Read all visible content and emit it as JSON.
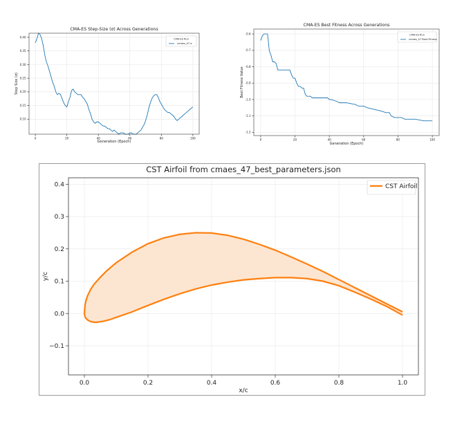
{
  "chart_data": [
    {
      "type": "line",
      "title": "CMA-ES Step-Size (σ) Across Generations",
      "xlabel": "Generation (Epoch)",
      "ylabel": "Step Size (σ)",
      "xlim": [
        -4,
        104
      ],
      "ylim": [
        0.045,
        0.415
      ],
      "xticks": [
        0,
        20,
        40,
        60,
        80,
        100
      ],
      "yticks": [
        0.1,
        0.15,
        0.2,
        0.25,
        0.3,
        0.35,
        0.4
      ],
      "ytick_labels": [
        "0.10",
        "0.15",
        "0.20",
        "0.25",
        "0.30",
        "0.35",
        "0.40"
      ],
      "grid": true,
      "legend_title": "CMA-ES Run",
      "legend_position": "top-right",
      "series": [
        {
          "name": "cmaes_47 σ",
          "color": "#1f77b4",
          "points": [
            [
              0,
              0.38
            ],
            [
              1,
              0.395
            ],
            [
              2,
              0.415
            ],
            [
              3,
              0.41
            ],
            [
              4,
              0.395
            ],
            [
              5,
              0.37
            ],
            [
              6,
              0.335
            ],
            [
              7,
              0.31
            ],
            [
              8,
              0.295
            ],
            [
              9,
              0.275
            ],
            [
              10,
              0.255
            ],
            [
              11,
              0.235
            ],
            [
              12,
              0.22
            ],
            [
              13,
              0.2
            ],
            [
              14,
              0.19
            ],
            [
              15,
              0.195
            ],
            [
              16,
              0.19
            ],
            [
              17,
              0.175
            ],
            [
              18,
              0.16
            ],
            [
              19,
              0.15
            ],
            [
              20,
              0.145
            ],
            [
              21,
              0.165
            ],
            [
              22,
              0.18
            ],
            [
              23,
              0.205
            ],
            [
              24,
              0.21
            ],
            [
              25,
              0.2
            ],
            [
              26,
              0.195
            ],
            [
              27,
              0.19
            ],
            [
              28,
              0.19
            ],
            [
              29,
              0.19
            ],
            [
              30,
              0.18
            ],
            [
              31,
              0.175
            ],
            [
              32,
              0.165
            ],
            [
              33,
              0.155
            ],
            [
              34,
              0.135
            ],
            [
              35,
              0.12
            ],
            [
              36,
              0.1
            ],
            [
              37,
              0.09
            ],
            [
              38,
              0.085
            ],
            [
              39,
              0.09
            ],
            [
              40,
              0.09
            ],
            [
              41,
              0.085
            ],
            [
              42,
              0.08
            ],
            [
              43,
              0.075
            ],
            [
              44,
              0.075
            ],
            [
              45,
              0.07
            ],
            [
              46,
              0.065
            ],
            [
              47,
              0.065
            ],
            [
              48,
              0.06
            ],
            [
              49,
              0.055
            ],
            [
              50,
              0.06
            ],
            [
              51,
              0.055
            ],
            [
              52,
              0.05
            ],
            [
              53,
              0.045
            ],
            [
              54,
              0.05
            ],
            [
              55,
              0.05
            ],
            [
              56,
              0.05
            ],
            [
              57,
              0.045
            ],
            [
              58,
              0.045
            ],
            [
              59,
              0.045
            ],
            [
              60,
              0.05
            ],
            [
              61,
              0.05
            ],
            [
              62,
              0.045
            ],
            [
              63,
              0.045
            ],
            [
              64,
              0.045
            ],
            [
              65,
              0.05
            ],
            [
              66,
              0.055
            ],
            [
              67,
              0.06
            ],
            [
              68,
              0.07
            ],
            [
              69,
              0.08
            ],
            [
              70,
              0.095
            ],
            [
              71,
              0.115
            ],
            [
              72,
              0.14
            ],
            [
              73,
              0.16
            ],
            [
              74,
              0.175
            ],
            [
              75,
              0.185
            ],
            [
              76,
              0.19
            ],
            [
              77,
              0.19
            ],
            [
              78,
              0.18
            ],
            [
              79,
              0.165
            ],
            [
              80,
              0.155
            ],
            [
              81,
              0.145
            ],
            [
              82,
              0.135
            ],
            [
              83,
              0.13
            ],
            [
              84,
              0.125
            ],
            [
              85,
              0.125
            ],
            [
              86,
              0.12
            ],
            [
              87,
              0.115
            ],
            [
              88,
              0.11
            ],
            [
              89,
              0.1
            ],
            [
              90,
              0.095
            ],
            [
              91,
              0.1
            ],
            [
              92,
              0.105
            ],
            [
              93,
              0.11
            ],
            [
              94,
              0.115
            ],
            [
              95,
              0.12
            ],
            [
              96,
              0.125
            ],
            [
              97,
              0.13
            ],
            [
              98,
              0.135
            ],
            [
              99,
              0.14
            ],
            [
              100,
              0.145
            ]
          ]
        }
      ]
    },
    {
      "type": "line",
      "title": "CMA-ES Best Fitness Across Generations",
      "xlabel": "Generation (Epoch)",
      "ylabel": "Best Fitness Value",
      "xlim": [
        -4,
        104
      ],
      "ylim": [
        -1.22,
        -0.57
      ],
      "xticks": [
        0,
        20,
        40,
        60,
        80,
        100
      ],
      "yticks": [
        -0.6,
        -0.7,
        -0.8,
        -0.9,
        -1.0,
        -1.1,
        -1.2
      ],
      "ytick_labels": [
        "-0.6",
        "-0.7",
        "-0.8",
        "-0.9",
        "-1.0",
        "-1.1",
        "-1.2"
      ],
      "grid": true,
      "legend_title": "CMA-ES Run",
      "legend_position": "top-right",
      "series": [
        {
          "name": "cmaes_47 Best Fitness",
          "color": "#1f77b4",
          "points": [
            [
              0,
              -0.64
            ],
            [
              1,
              -0.61
            ],
            [
              2,
              -0.6
            ],
            [
              3,
              -0.6
            ],
            [
              4,
              -0.6
            ],
            [
              5,
              -0.7
            ],
            [
              6,
              -0.73
            ],
            [
              7,
              -0.77
            ],
            [
              8,
              -0.77
            ],
            [
              9,
              -0.78
            ],
            [
              10,
              -0.82
            ],
            [
              11,
              -0.82
            ],
            [
              14,
              -0.82
            ],
            [
              17,
              -0.82
            ],
            [
              18,
              -0.85
            ],
            [
              19,
              -0.87
            ],
            [
              20,
              -0.87
            ],
            [
              21,
              -0.9
            ],
            [
              22,
              -0.92
            ],
            [
              23,
              -0.92
            ],
            [
              24,
              -0.93
            ],
            [
              25,
              -0.93
            ],
            [
              26,
              -0.97
            ],
            [
              27,
              -0.98
            ],
            [
              29,
              -0.98
            ],
            [
              30,
              -0.99
            ],
            [
              31,
              -0.99
            ],
            [
              39,
              -0.99
            ],
            [
              40,
              -1.0
            ],
            [
              41,
              -1.0
            ],
            [
              44,
              -1.01
            ],
            [
              46,
              -1.02
            ],
            [
              50,
              -1.02
            ],
            [
              55,
              -1.03
            ],
            [
              57,
              -1.04
            ],
            [
              60,
              -1.04
            ],
            [
              62,
              -1.05
            ],
            [
              66,
              -1.06
            ],
            [
              70,
              -1.07
            ],
            [
              73,
              -1.08
            ],
            [
              75,
              -1.08
            ],
            [
              76,
              -1.1
            ],
            [
              78,
              -1.11
            ],
            [
              82,
              -1.11
            ],
            [
              84,
              -1.12
            ],
            [
              90,
              -1.12
            ],
            [
              95,
              -1.13
            ],
            [
              100,
              -1.13
            ]
          ]
        }
      ]
    },
    {
      "type": "area",
      "title": "CST Airfoil from cmaes_47_best_parameters.json",
      "xlabel": "x/c",
      "ylabel": "y/c",
      "xlim": [
        -0.05,
        1.05
      ],
      "ylim": [
        -0.19,
        0.42
      ],
      "xticks": [
        0.0,
        0.2,
        0.4,
        0.6,
        0.8,
        1.0
      ],
      "xtick_labels": [
        "0.0",
        "0.2",
        "0.4",
        "0.6",
        "0.8",
        "1.0"
      ],
      "yticks": [
        -0.1,
        0.0,
        0.1,
        0.2,
        0.3,
        0.4
      ],
      "ytick_labels": [
        "−0.1",
        "0.0",
        "0.1",
        "0.2",
        "0.3",
        "0.4"
      ],
      "grid": true,
      "legend_position": "top-right",
      "series": [
        {
          "name": "CST Airfoil",
          "color": "#ff7f0e",
          "fill_color": "#fde6d1",
          "upper": [
            [
              1.0,
              0.005
            ],
            [
              0.95,
              0.03
            ],
            [
              0.9,
              0.055
            ],
            [
              0.85,
              0.08
            ],
            [
              0.8,
              0.105
            ],
            [
              0.75,
              0.13
            ],
            [
              0.7,
              0.153
            ],
            [
              0.65,
              0.175
            ],
            [
              0.6,
              0.196
            ],
            [
              0.55,
              0.214
            ],
            [
              0.5,
              0.23
            ],
            [
              0.45,
              0.242
            ],
            [
              0.4,
              0.249
            ],
            [
              0.35,
              0.25
            ],
            [
              0.3,
              0.245
            ],
            [
              0.25,
              0.234
            ],
            [
              0.2,
              0.216
            ],
            [
              0.15,
              0.19
            ],
            [
              0.1,
              0.157
            ],
            [
              0.07,
              0.132
            ],
            [
              0.05,
              0.112
            ],
            [
              0.03,
              0.09
            ],
            [
              0.02,
              0.075
            ],
            [
              0.01,
              0.055
            ],
            [
              0.005,
              0.04
            ],
            [
              0.002,
              0.025
            ],
            [
              0.0,
              0.0
            ]
          ],
          "lower": [
            [
              0.0,
              0.0
            ],
            [
              0.002,
              -0.01
            ],
            [
              0.005,
              -0.015
            ],
            [
              0.01,
              -0.02
            ],
            [
              0.02,
              -0.025
            ],
            [
              0.03,
              -0.027
            ],
            [
              0.04,
              -0.027
            ],
            [
              0.06,
              -0.024
            ],
            [
              0.08,
              -0.019
            ],
            [
              0.1,
              -0.012
            ],
            [
              0.15,
              0.005
            ],
            [
              0.2,
              0.025
            ],
            [
              0.25,
              0.044
            ],
            [
              0.3,
              0.061
            ],
            [
              0.35,
              0.076
            ],
            [
              0.4,
              0.088
            ],
            [
              0.45,
              0.097
            ],
            [
              0.5,
              0.104
            ],
            [
              0.55,
              0.108
            ],
            [
              0.6,
              0.111
            ],
            [
              0.65,
              0.111
            ],
            [
              0.7,
              0.108
            ],
            [
              0.75,
              0.1
            ],
            [
              0.8,
              0.086
            ],
            [
              0.85,
              0.066
            ],
            [
              0.9,
              0.045
            ],
            [
              0.95,
              0.022
            ],
            [
              1.0,
              -0.005
            ]
          ]
        }
      ]
    }
  ]
}
